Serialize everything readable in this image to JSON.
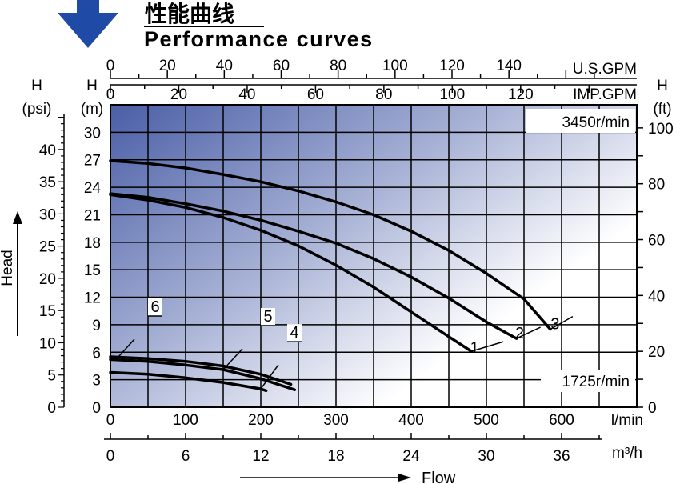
{
  "header": {
    "title_cn": "性能曲线",
    "title_en": "Performance curves"
  },
  "colors": {
    "arrow": "#1f4aa6",
    "grid": "#000000",
    "curve": "#000000",
    "gradient_dark": "#4a5ea6",
    "gradient_light": "#ffffff"
  },
  "chart_data": {
    "type": "line",
    "axes": {
      "usgpm": {
        "label": "U.S.GPM",
        "ticks": [
          "0",
          "20",
          "40",
          "60",
          "80",
          "100",
          "120",
          "140"
        ]
      },
      "impgpm": {
        "label": "IMP.GPM",
        "ticks": [
          "0",
          "20",
          "40",
          "60",
          "80",
          "100",
          "120"
        ]
      },
      "lmin": {
        "label": "l/min",
        "ticks": [
          "0",
          "100",
          "200",
          "300",
          "400",
          "500",
          "600"
        ],
        "range": [
          0,
          700
        ]
      },
      "m3h": {
        "label": "m³/h",
        "ticks": [
          "0",
          "6",
          "12",
          "18",
          "24",
          "30",
          "36"
        ]
      },
      "head_m": {
        "label_top": "H",
        "label_unit": "(m)",
        "ticks": [
          "0",
          "3",
          "6",
          "9",
          "12",
          "15",
          "18",
          "21",
          "24",
          "27",
          "30"
        ],
        "range": [
          0,
          33
        ]
      },
      "head_psi": {
        "label_top": "H",
        "label_unit": "(psi)",
        "ticks": [
          "0",
          "5",
          "10",
          "15",
          "20",
          "25",
          "30",
          "35",
          "40"
        ]
      },
      "head_ft": {
        "label_top": "H",
        "label_unit": "(ft)",
        "ticks": [
          "0",
          "20",
          "40",
          "60",
          "80",
          "100"
        ]
      }
    },
    "xlabel": "Flow",
    "ylabel": "Head",
    "speed_labels": {
      "high": "3450r/min",
      "low": "1725r/min"
    },
    "grid": true,
    "series": [
      {
        "name": "1",
        "x": [
          0,
          50,
          100,
          150,
          200,
          250,
          300,
          350,
          400,
          450,
          480
        ],
        "y": [
          23.2,
          22.6,
          21.8,
          20.7,
          19.3,
          17.6,
          15.5,
          13.1,
          10.4,
          7.7,
          6.1
        ]
      },
      {
        "name": "2",
        "x": [
          0,
          50,
          100,
          150,
          200,
          250,
          300,
          350,
          400,
          450,
          500,
          540
        ],
        "y": [
          23.3,
          22.9,
          22.2,
          21.4,
          20.4,
          19.2,
          17.9,
          16.2,
          14.2,
          11.9,
          9.3,
          7.5
        ]
      },
      {
        "name": "3",
        "x": [
          0,
          50,
          100,
          150,
          200,
          250,
          300,
          350,
          400,
          450,
          500,
          550,
          585
        ],
        "y": [
          26.9,
          26.6,
          26.1,
          25.4,
          24.6,
          23.6,
          22.4,
          21.0,
          19.2,
          17.1,
          14.6,
          11.8,
          8.5
        ]
      },
      {
        "name": "4",
        "x": [
          0,
          50,
          100,
          150,
          200,
          207
        ],
        "y": [
          3.8,
          3.6,
          3.2,
          2.7,
          2.0,
          1.8
        ]
      },
      {
        "name": "5",
        "x": [
          0,
          50,
          100,
          150,
          200,
          245
        ],
        "y": [
          5.2,
          5.0,
          4.6,
          4.1,
          3.1,
          1.9
        ]
      },
      {
        "name": "6",
        "x": [
          0,
          50,
          100,
          150,
          200,
          240
        ],
        "y": [
          5.5,
          5.3,
          5.0,
          4.5,
          3.6,
          2.5
        ]
      }
    ]
  }
}
